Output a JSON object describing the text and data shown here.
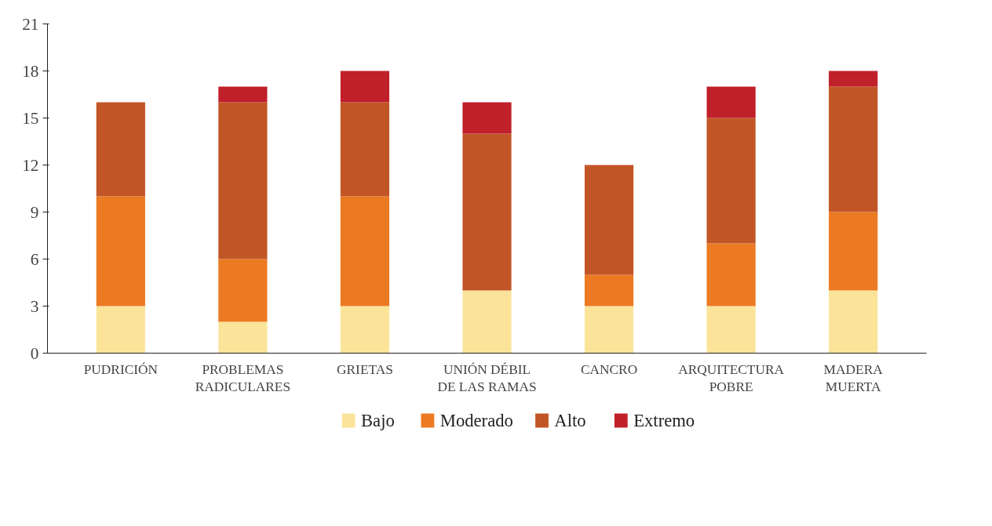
{
  "chart_data": {
    "type": "bar",
    "stacked": true,
    "categories": [
      "PUDRICIÓN",
      "PROBLEMAS\nRADICULARES",
      "GRIETAS",
      "UNIÓN DÉBIL\nDE LAS RAMAS",
      "CANCRO",
      "ARQUITECTURA\nPOBRE",
      "MADERA\nMUERTA"
    ],
    "series": [
      {
        "name": "Bajo",
        "color": "#fbe49a",
        "values": [
          3,
          2,
          3,
          4,
          3,
          3,
          4
        ]
      },
      {
        "name": "Moderado",
        "color": "#ec7a22",
        "values": [
          7,
          4,
          7,
          0,
          2,
          4,
          5
        ]
      },
      {
        "name": "Alto",
        "color": "#c25526",
        "values": [
          6,
          10,
          6,
          10,
          7,
          8,
          8
        ]
      },
      {
        "name": "Extremo",
        "color": "#c0202a",
        "values": [
          0,
          1,
          2,
          2,
          0,
          2,
          1
        ]
      }
    ],
    "ylim": [
      0,
      21
    ],
    "yticks": [
      0,
      3,
      6,
      9,
      12,
      15,
      18,
      21
    ],
    "grid": false,
    "legend": "bottom"
  }
}
